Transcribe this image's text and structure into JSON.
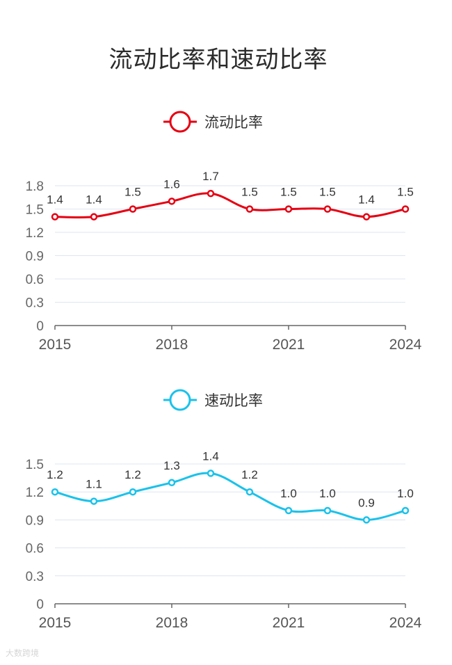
{
  "page": {
    "title": "流动比率和速动比率",
    "watermark": "大数跨境"
  },
  "chart_data": [
    {
      "type": "line",
      "title": "",
      "legend": "流动比率",
      "color": "#e60012",
      "x": [
        2015,
        2016,
        2017,
        2018,
        2019,
        2020,
        2021,
        2022,
        2023,
        2024
      ],
      "values": [
        1.4,
        1.4,
        1.5,
        1.6,
        1.7,
        1.5,
        1.5,
        1.5,
        1.4,
        1.5
      ],
      "labels": [
        "1.4",
        "1.4",
        "1.5",
        "1.6",
        "1.7",
        "1.5",
        "1.5",
        "1.5",
        "1.4",
        "1.5"
      ],
      "x_ticks": [
        "2015",
        "2018",
        "2021",
        "2024"
      ],
      "y_ticks": [
        "0",
        "0.3",
        "0.6",
        "0.9",
        "1.2",
        "1.5",
        "1.8"
      ],
      "ylim": [
        0,
        1.8
      ],
      "xlabel": "",
      "ylabel": "",
      "grid": true,
      "legend_position": "top-center"
    },
    {
      "type": "line",
      "title": "",
      "legend": "速动比率",
      "color": "#1bc2ea",
      "x": [
        2015,
        2016,
        2017,
        2018,
        2019,
        2020,
        2021,
        2022,
        2023,
        2024
      ],
      "values": [
        1.2,
        1.1,
        1.2,
        1.3,
        1.4,
        1.2,
        1.0,
        1.0,
        0.9,
        1.0
      ],
      "labels": [
        "1.2",
        "1.1",
        "1.2",
        "1.3",
        "1.4",
        "1.2",
        "1.0",
        "1.0",
        "0.9",
        "1.0"
      ],
      "x_ticks": [
        "2015",
        "2018",
        "2021",
        "2024"
      ],
      "y_ticks": [
        "0",
        "0.3",
        "0.6",
        "0.9",
        "1.2",
        "1.5"
      ],
      "ylim": [
        0,
        1.5
      ],
      "xlabel": "",
      "ylabel": "",
      "grid": true,
      "legend_position": "top-center"
    }
  ]
}
